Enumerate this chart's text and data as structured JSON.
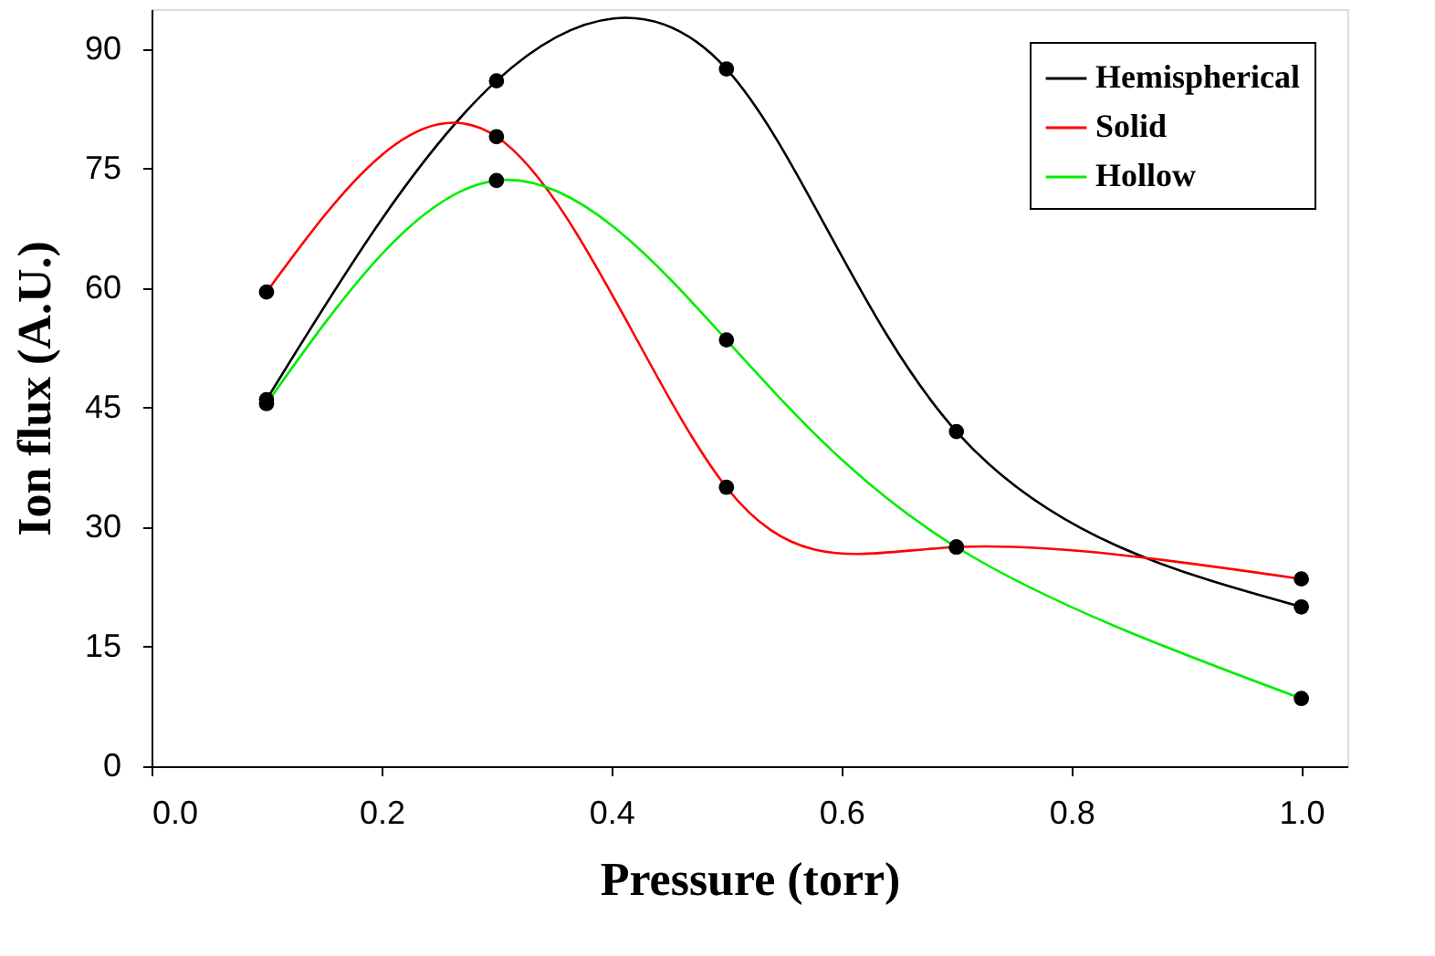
{
  "chart_data": {
    "type": "line",
    "xlabel": "Pressure (torr)",
    "ylabel": "Ion flux (A.U.)",
    "x": [
      0.1,
      0.3,
      0.5,
      0.7,
      1.0
    ],
    "series": [
      {
        "name": "Hemispherical",
        "color": "#000000",
        "values": [
          46,
          86,
          87.5,
          42,
          20
        ]
      },
      {
        "name": "Solid",
        "color": "#ff0000",
        "values": [
          59.5,
          79,
          35,
          27.5,
          23.5
        ]
      },
      {
        "name": "Hollow",
        "color": "#00ee00",
        "values": [
          45.5,
          73.5,
          53.5,
          27.5,
          8.5
        ]
      }
    ],
    "xlim": [
      0,
      1.04
    ],
    "xticks": [
      {
        "value": 0,
        "label": "0.0"
      },
      {
        "value": 0.2,
        "label": "0.2"
      },
      {
        "value": 0.4,
        "label": "0.4"
      },
      {
        "value": 0.6,
        "label": "0.6"
      },
      {
        "value": 0.8,
        "label": "0.8"
      },
      {
        "value": 1,
        "label": "1.0"
      }
    ],
    "ylim": [
      0,
      95
    ],
    "yticks": [
      0,
      15,
      30,
      45,
      60,
      75,
      90
    ],
    "grid": false,
    "legend": "top right",
    "marker": "circle",
    "line_style": "solid"
  }
}
